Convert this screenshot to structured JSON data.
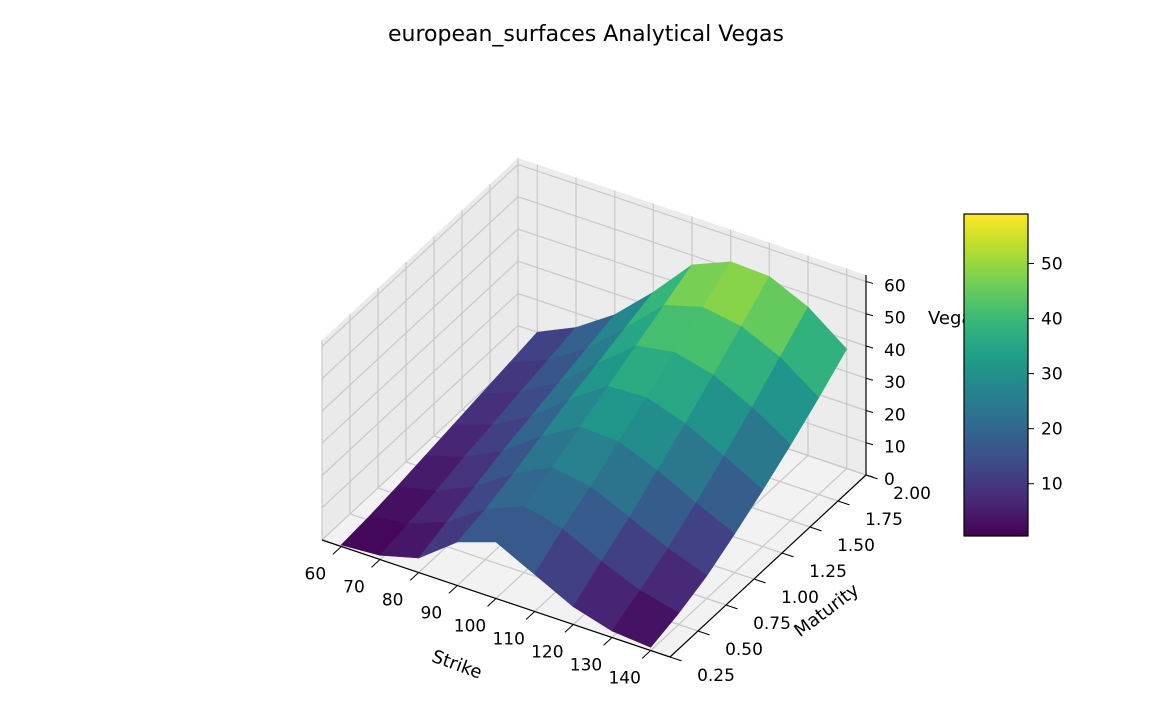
{
  "chart_data": {
    "type": "surface3d",
    "title": "european_surfaces Analytical Vegas",
    "xlabel": "Strike",
    "ylabel": "Maturity",
    "zlabel": "Vega",
    "xticks": [
      "60",
      "70",
      "80",
      "90",
      "100",
      "110",
      "120",
      "130",
      "140"
    ],
    "yticks": [
      "0.25",
      "0.50",
      "0.75",
      "1.00",
      "1.25",
      "1.50",
      "1.75",
      "2.00"
    ],
    "zticks": [
      "0",
      "10",
      "20",
      "30",
      "40",
      "50",
      "60"
    ],
    "colorbar_ticks": [
      "10",
      "20",
      "30",
      "40",
      "50"
    ],
    "colormap": "viridis",
    "colorbar_range": [
      0.5,
      59
    ],
    "xlim": [
      55,
      145
    ],
    "ylim": [
      0.25,
      2.0
    ],
    "zlim": [
      0,
      62
    ],
    "strikes": [
      60,
      70,
      80,
      90,
      100,
      110,
      120,
      130,
      140
    ],
    "maturities": [
      0.25,
      0.5,
      0.75,
      1.0,
      1.25,
      1.5,
      1.75,
      2.0
    ],
    "vega": [
      [
        0.5,
        1.3,
        4.5,
        13.5,
        17.5,
        11.5,
        5.5,
        2.0,
        1.0
      ],
      [
        1.3,
        3.0,
        7.5,
        15.5,
        20.5,
        17.5,
        11.5,
        6.5,
        3.5
      ],
      [
        2.5,
        5.0,
        10.5,
        18.5,
        24.5,
        22.5,
        17.0,
        11.5,
        7.0
      ],
      [
        4.0,
        7.5,
        13.5,
        22.0,
        29.0,
        28.5,
        23.5,
        17.5,
        12.0
      ],
      [
        5.5,
        9.5,
        16.0,
        25.5,
        33.5,
        34.0,
        30.0,
        24.0,
        17.5
      ],
      [
        7.0,
        11.5,
        18.5,
        28.5,
        38.0,
        40.0,
        37.0,
        31.0,
        23.5
      ],
      [
        8.5,
        13.5,
        21.0,
        31.5,
        42.5,
        46.0,
        44.0,
        38.5,
        30.0
      ],
      [
        10.0,
        15.5,
        23.5,
        34.5,
        47.0,
        52.0,
        51.5,
        46.0,
        37.0
      ]
    ]
  }
}
